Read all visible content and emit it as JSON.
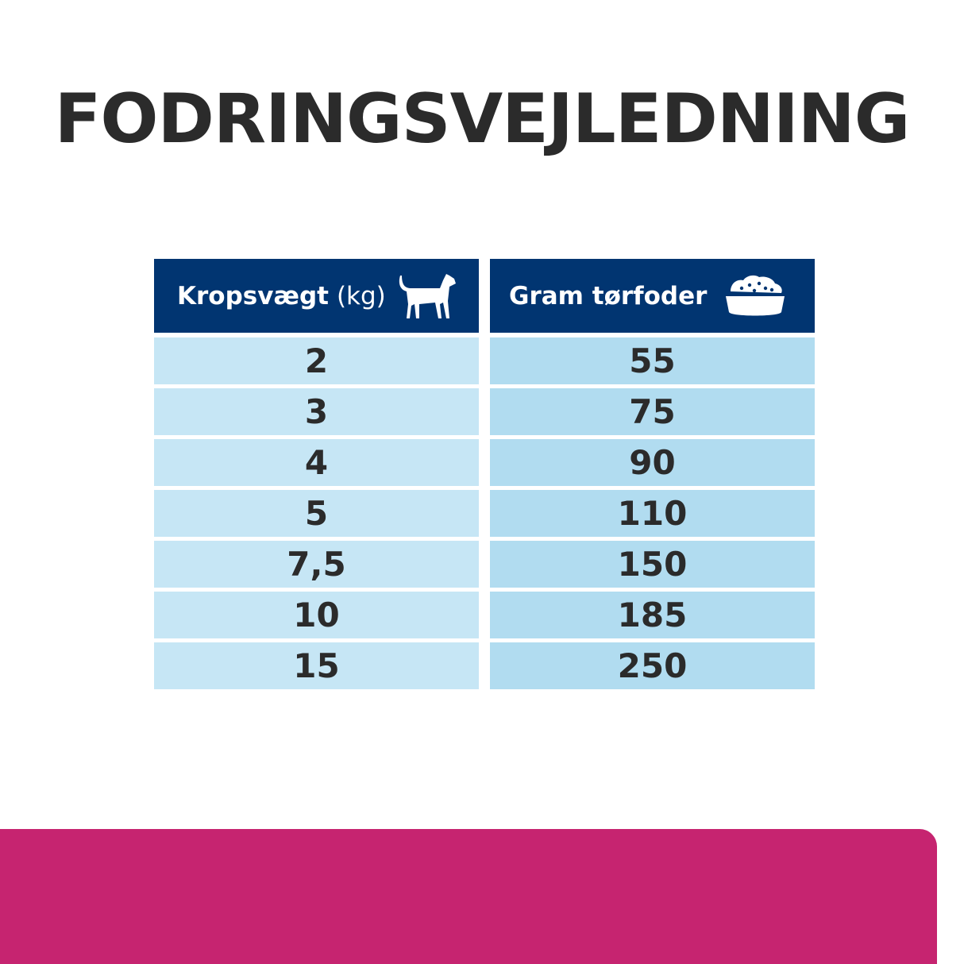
{
  "title": "FODRINGSVEJLEDNING",
  "table": {
    "headers": [
      {
        "label": "Kropsvægt",
        "unit": "(kg)",
        "icon": "dog-icon"
      },
      {
        "label": "Gram tørfoder",
        "icon": "food-bowl-icon"
      }
    ],
    "rows": [
      {
        "weight": "2",
        "grams": "55"
      },
      {
        "weight": "3",
        "grams": "75"
      },
      {
        "weight": "4",
        "grams": "90"
      },
      {
        "weight": "5",
        "grams": "110"
      },
      {
        "weight": "7,5",
        "grams": "150"
      },
      {
        "weight": "10",
        "grams": "185"
      },
      {
        "weight": "15",
        "grams": "250"
      }
    ]
  },
  "colors": {
    "header": "#013571",
    "left_cell": "#c6e6f5",
    "right_cell": "#b1dcf0",
    "band": "#c62470",
    "text": "#2b2b2b"
  }
}
